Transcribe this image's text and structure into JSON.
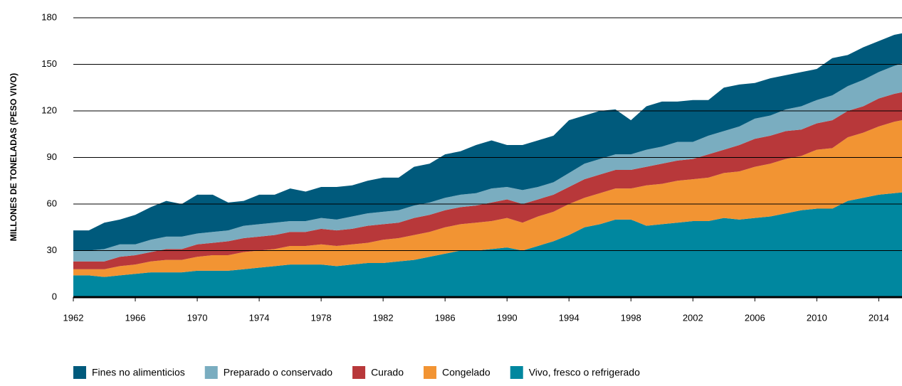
{
  "chart_data": {
    "type": "stacked_area",
    "y_label": "MILLONES DE TONELADAS (PESO VIVO)",
    "x": [
      1962,
      1963,
      1964,
      1965,
      1966,
      1967,
      1968,
      1969,
      1970,
      1971,
      1972,
      1973,
      1974,
      1975,
      1976,
      1977,
      1978,
      1979,
      1980,
      1981,
      1982,
      1983,
      1984,
      1985,
      1986,
      1987,
      1988,
      1989,
      1990,
      1991,
      1992,
      1993,
      1994,
      1995,
      1996,
      1997,
      1998,
      1999,
      2000,
      2001,
      2002,
      2003,
      2004,
      2005,
      2006,
      2007,
      2008,
      2009,
      2010,
      2011,
      2012,
      2013,
      2014,
      2015,
      2016
    ],
    "series": [
      {
        "name": "Fines no alimenticios",
        "color": "#005a7c",
        "values": [
          13,
          13,
          17,
          16,
          19,
          21,
          23,
          21,
          25,
          24,
          18,
          16,
          19,
          18,
          21,
          19,
          20,
          21,
          20,
          21,
          22,
          21,
          25,
          25,
          28,
          28,
          31,
          31,
          27,
          29,
          30,
          30,
          34,
          31,
          31,
          29,
          22,
          28,
          29,
          26,
          27,
          23,
          28,
          27,
          23,
          24,
          22,
          22,
          20,
          24,
          20,
          21,
          20,
          20,
          19
        ]
      },
      {
        "name": "Preparado o conservado",
        "color": "#7aadc0",
        "values": [
          7,
          7,
          8,
          8,
          7,
          8,
          8,
          8,
          7,
          7,
          7,
          8,
          8,
          8,
          7,
          7,
          7,
          7,
          8,
          8,
          8,
          8,
          8,
          8,
          8,
          8,
          8,
          9,
          8,
          9,
          8,
          8,
          9,
          10,
          10,
          10,
          10,
          11,
          11,
          12,
          11,
          12,
          12,
          12,
          13,
          13,
          14,
          15,
          15,
          16,
          16,
          17,
          17,
          18,
          19
        ]
      },
      {
        "name": "Curado",
        "color": "#b8383a",
        "values": [
          5,
          5,
          5,
          6,
          6,
          6,
          7,
          7,
          8,
          8,
          9,
          9,
          9,
          9,
          9,
          9,
          10,
          10,
          10,
          11,
          10,
          10,
          11,
          11,
          11,
          11,
          11,
          12,
          12,
          12,
          11,
          11,
          11,
          12,
          12,
          12,
          12,
          12,
          13,
          13,
          13,
          15,
          15,
          17,
          18,
          18,
          18,
          17,
          17,
          18,
          17,
          17,
          18,
          18,
          18
        ]
      },
      {
        "name": "Congelado",
        "color": "#f29433",
        "values": [
          4,
          4,
          5,
          6,
          6,
          7,
          8,
          8,
          9,
          10,
          10,
          11,
          11,
          11,
          12,
          12,
          13,
          13,
          13,
          13,
          15,
          15,
          16,
          16,
          17,
          17,
          18,
          18,
          19,
          18,
          19,
          19,
          20,
          19,
          20,
          20,
          20,
          26,
          26,
          27,
          27,
          28,
          29,
          31,
          33,
          34,
          35,
          35,
          38,
          39,
          41,
          42,
          44,
          46,
          47
        ]
      },
      {
        "name": "Vivo, fresco o refrigerado",
        "color": "#00879f",
        "values": [
          14,
          14,
          13,
          14,
          15,
          16,
          16,
          16,
          17,
          17,
          17,
          18,
          19,
          20,
          21,
          21,
          21,
          20,
          21,
          22,
          22,
          23,
          24,
          26,
          28,
          30,
          30,
          31,
          32,
          30,
          33,
          36,
          40,
          45,
          47,
          50,
          50,
          46,
          47,
          48,
          49,
          49,
          51,
          50,
          51,
          52,
          54,
          56,
          57,
          57,
          62,
          64,
          66,
          67,
          68
        ]
      }
    ],
    "xlim": [
      1962,
      2015.5
    ],
    "xticks": [
      1962,
      1966,
      1970,
      1974,
      1978,
      1982,
      1986,
      1990,
      1994,
      1998,
      2002,
      2006,
      2010,
      2014
    ],
    "ylim": [
      0,
      180
    ],
    "yticks": [
      0,
      30,
      60,
      90,
      120,
      150,
      180
    ],
    "grid": true,
    "legend": "bottom"
  }
}
